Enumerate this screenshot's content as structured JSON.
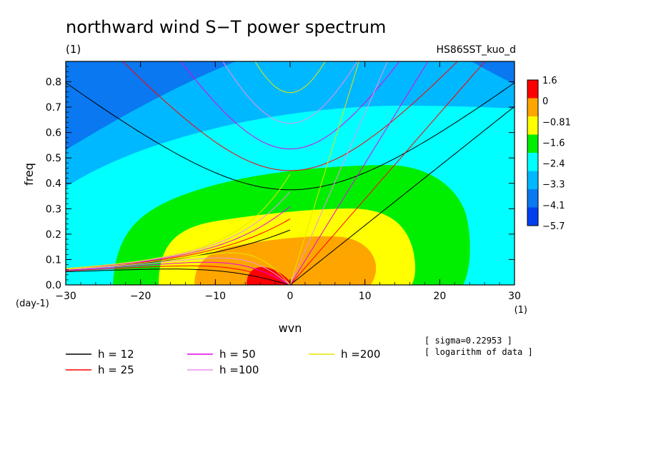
{
  "chart_data": {
    "type": "contour",
    "title": "northward wind S−T power spectrum",
    "subtitle": "(1)",
    "run_label": "HS86SST_kuo_d",
    "xlabel": "wvn",
    "ylabel": "freq",
    "x_unit": "(1)",
    "y_unit": "(day-1)",
    "xlim": [
      -30,
      30
    ],
    "ylim": [
      0,
      0.88
    ],
    "x_ticks": [
      "−30",
      "−20",
      "−10",
      "0",
      "10",
      "20",
      "30"
    ],
    "y_ticks": [
      "0.0",
      "0.1",
      "0.2",
      "0.3",
      "0.4",
      "0.5",
      "0.6",
      "0.7",
      "0.8"
    ],
    "colorbar_labels": [
      "1.6",
      "0",
      "−0.81",
      "−1.6",
      "−2.4",
      "−3.3",
      "−4.1",
      "−5.7"
    ],
    "colorbar_colors": [
      "#ff0000",
      "#ffa500",
      "#ffff00",
      "#00ee00",
      "#00ffff",
      "#00b8ff",
      "#0a78f0",
      "#0040f0"
    ],
    "notes": [
      "[ sigma=0.22953 ]",
      "[ logarithm of data ]"
    ],
    "dispersion_curves": [
      {
        "label": "h = 12",
        "h": 12,
        "color": "#000000"
      },
      {
        "label": "h = 25",
        "h": 25,
        "color": "#ff0000"
      },
      {
        "label": "h = 50",
        "h": 50,
        "color": "#e600e6"
      },
      {
        "label": "h =100",
        "h": 100,
        "color": "#ee90ee"
      },
      {
        "label": "h =200",
        "h": 200,
        "color": "#e6e600"
      }
    ]
  }
}
